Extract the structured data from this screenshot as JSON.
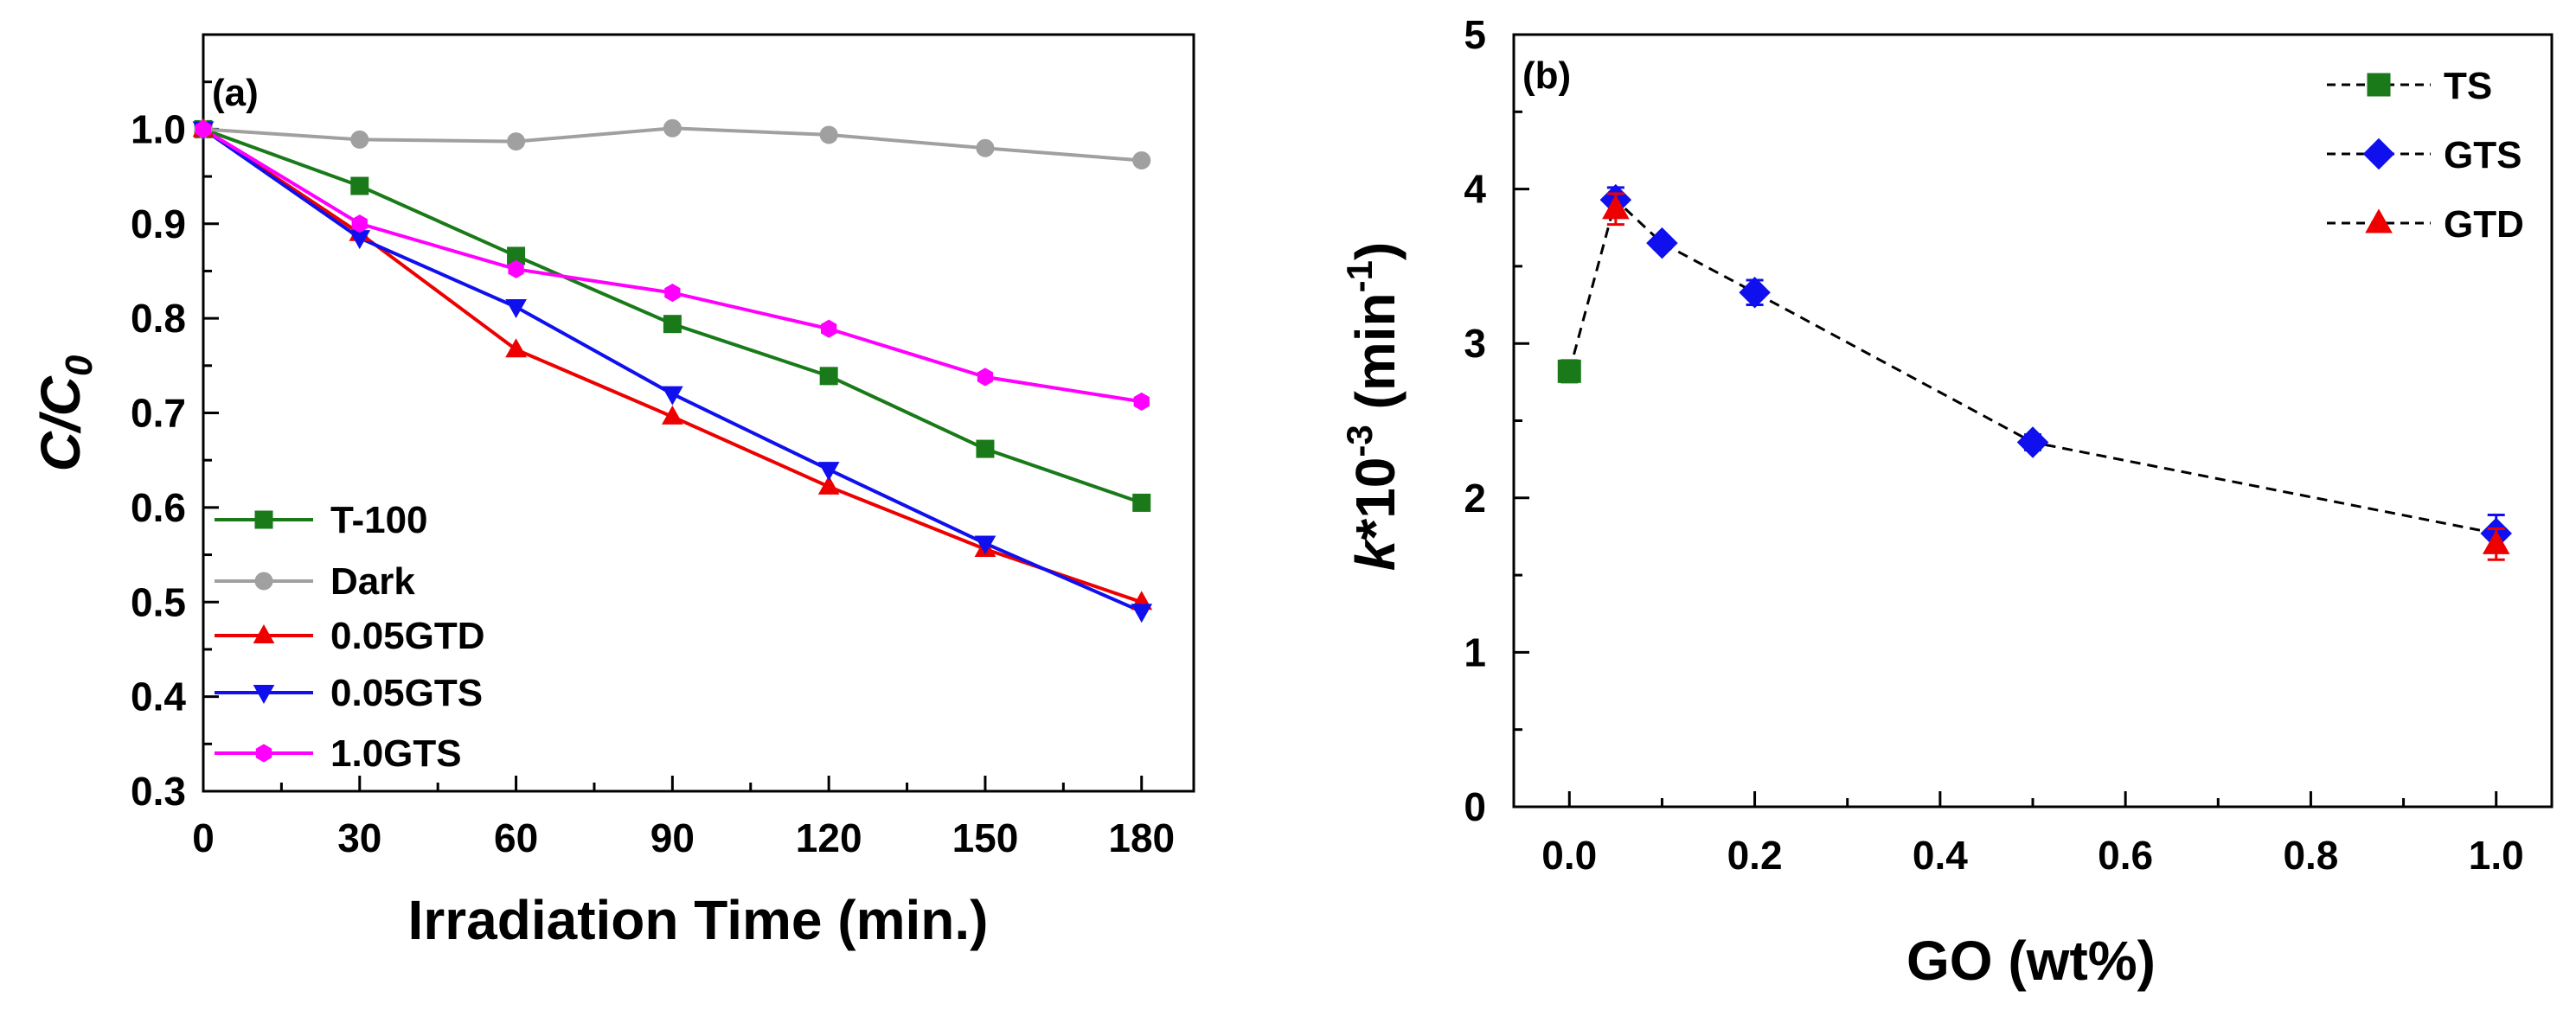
{
  "chart_data": [
    {
      "type": "line",
      "panel_label": "(a)",
      "xlabel": "Irradiation Time (min.)",
      "ylabel": {
        "main": "C/C",
        "sub": "0"
      },
      "xlim": [
        0,
        190
      ],
      "ylim": [
        0.3,
        1.1
      ],
      "x_ticks": [
        0,
        30,
        60,
        90,
        120,
        150,
        180
      ],
      "y_ticks": [
        0.3,
        0.4,
        0.5,
        0.6,
        0.7,
        0.8,
        0.9,
        1.0
      ],
      "y_tick_labels": [
        "0.3",
        "0.4",
        "0.5",
        "0.6",
        "0.7",
        "0.8",
        "0.9",
        "1.0"
      ],
      "legend_position": "bottom-left",
      "x": [
        0,
        30,
        60,
        90,
        120,
        150,
        180
      ],
      "series": [
        {
          "name": "T-100",
          "color": "#1a7a1a",
          "marker": "square",
          "values": [
            1.0,
            0.94,
            0.866,
            0.794,
            0.739,
            0.662,
            0.605
          ]
        },
        {
          "name": "Dark",
          "color": "#a0a0a0",
          "marker": "circle",
          "values": [
            1.0,
            0.989,
            0.987,
            1.001,
            0.994,
            0.98,
            0.967
          ]
        },
        {
          "name": "0.05GTD",
          "color": "#ee0000",
          "marker": "triangle-up",
          "values": [
            1.0,
            0.89,
            0.767,
            0.696,
            0.622,
            0.556,
            0.5
          ]
        },
        {
          "name": "0.05GTS",
          "color": "#1010ee",
          "marker": "triangle-down",
          "values": [
            1.0,
            0.885,
            0.812,
            0.72,
            0.64,
            0.562,
            0.49
          ]
        },
        {
          "name": "1.0GTS",
          "color": "#ff00ff",
          "marker": "hexagon",
          "values": [
            1.0,
            0.9,
            0.852,
            0.827,
            0.789,
            0.738,
            0.712
          ]
        }
      ]
    },
    {
      "type": "scatter",
      "panel_label": "(b)",
      "xlabel": "GO (wt%)",
      "ylabel": {
        "k": "k",
        "mid": "*10",
        "exp1": "-3",
        "unit": " (min",
        "exp2": "-1",
        "close": ")"
      },
      "xlim": [
        -0.06,
        1.06
      ],
      "ylim": [
        0,
        5
      ],
      "x_ticks": [
        0.0,
        0.2,
        0.4,
        0.6,
        0.8,
        1.0
      ],
      "x_tick_labels": [
        "0.0",
        "0.2",
        "0.4",
        "0.6",
        "0.8",
        "1.0"
      ],
      "y_ticks": [
        0,
        1,
        2,
        3,
        4,
        5
      ],
      "legend_position": "top-right",
      "trend_line": {
        "x": [
          0,
          0.05,
          0.1,
          0.2,
          0.5,
          1.0
        ],
        "y": [
          2.82,
          3.93,
          3.65,
          3.33,
          2.36,
          1.77
        ],
        "style": "dashed"
      },
      "series": [
        {
          "name": "TS",
          "color": "#1a7a1a",
          "marker": "square",
          "x": [
            0
          ],
          "y": [
            2.82
          ],
          "err": [
            0.07
          ]
        },
        {
          "name": "GTS",
          "color": "#1010ee",
          "marker": "diamond",
          "x": [
            0.05,
            0.1,
            0.2,
            0.5,
            1.0
          ],
          "y": [
            3.93,
            3.65,
            3.33,
            2.36,
            1.77
          ],
          "err": [
            0.08,
            0.04,
            0.08,
            0.05,
            0.12
          ]
        },
        {
          "name": "GTD",
          "color": "#ee0000",
          "marker": "triangle-up",
          "x": [
            0.05,
            1.0
          ],
          "y": [
            3.87,
            1.7
          ],
          "err": [
            0.1,
            0.1
          ]
        }
      ]
    }
  ]
}
